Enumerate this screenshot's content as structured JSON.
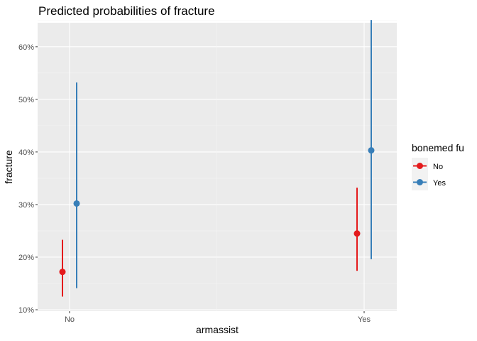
{
  "chart_data": {
    "type": "scatter",
    "title": "Predicted probabilities of fracture",
    "xlabel": "armassist",
    "ylabel": "fracture",
    "categories": [
      "No",
      "Yes"
    ],
    "ylim": [
      0.1,
      0.67
    ],
    "yticks": [
      0.1,
      0.2,
      0.3,
      0.4,
      0.5,
      0.6
    ],
    "ytick_labels": [
      "10%",
      "20%",
      "30%",
      "40%",
      "50%",
      "60%"
    ],
    "grid": true,
    "legend": {
      "title": "bonemed fu",
      "placement": "right"
    },
    "series": [
      {
        "name": "No",
        "color": "#E41A1C",
        "values": [
          0.172,
          0.245
        ],
        "lower": [
          0.125,
          0.174
        ],
        "upper": [
          0.233,
          0.332
        ]
      },
      {
        "name": "Yes",
        "color": "#377EB8",
        "values": [
          0.302,
          0.403
        ],
        "lower": [
          0.141,
          0.196
        ],
        "upper": [
          0.532,
          0.651
        ]
      }
    ]
  }
}
